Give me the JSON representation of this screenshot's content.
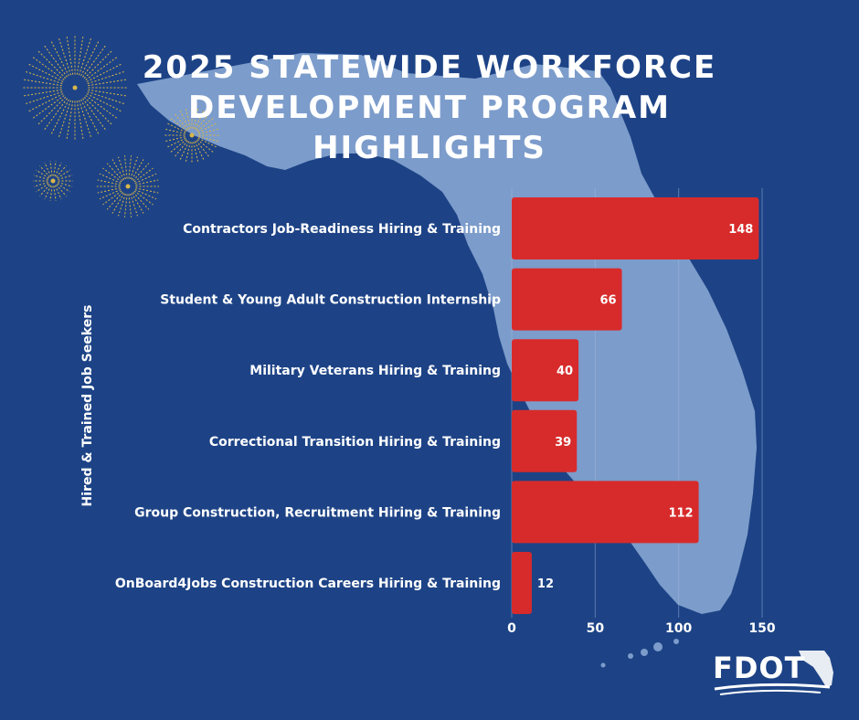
{
  "title_lines": [
    "2025 STATEWIDE WORKFORCE",
    "DEVELOPMENT PROGRAM",
    "HIGHLIGHTS"
  ],
  "logo_text": "FDOT",
  "colors": {
    "background": "#1d4386",
    "bar": "#d72b2b",
    "map": "#7c9ccb",
    "firework": "#d9b64a",
    "grid": "#a7bce0"
  },
  "chart_data": {
    "type": "bar",
    "orientation": "horizontal",
    "categories": [
      "Contractors Job-Readiness Hiring & Training",
      "Student & Young Adult Construction Internship",
      "Military Veterans Hiring & Training",
      "Correctional Transition Hiring & Training",
      "Group Construction, Recruitment Hiring & Training",
      "OnBoard4Jobs Construction Careers Hiring & Training"
    ],
    "values": [
      148,
      66,
      40,
      39,
      112,
      12
    ],
    "ylabel": "Hired & Trained Job Seekers",
    "xlabel": "",
    "xlim": [
      0,
      150
    ],
    "xticks": [
      0,
      50,
      100,
      150
    ],
    "grid": true
  }
}
